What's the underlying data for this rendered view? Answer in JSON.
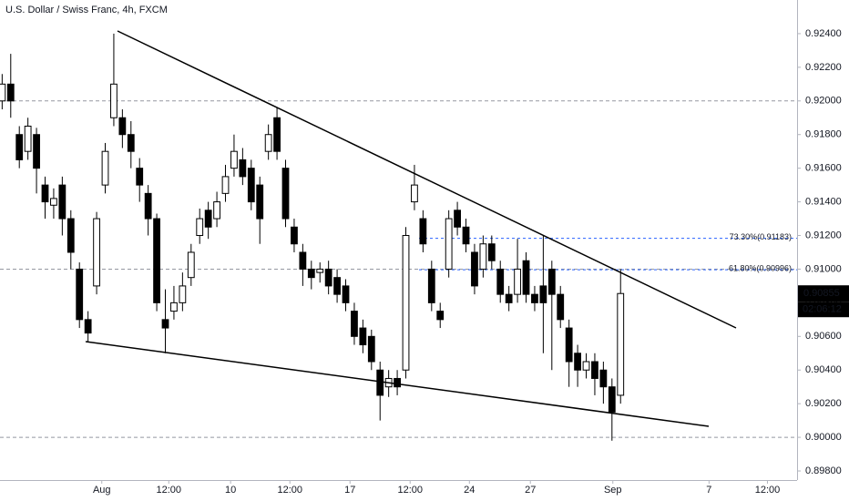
{
  "chart_data": {
    "type": "candlestick",
    "title": "U.S. Dollar / Swiss Franc, 4h, FXCM",
    "open": [
      0.92,
      0.921,
      0.918,
      0.917,
      0.918,
      0.915,
      0.9138,
      0.915,
      0.913,
      0.91,
      0.907,
      0.909,
      0.915,
      0.919,
      0.919,
      0.918,
      0.916,
      0.9145,
      0.913,
      0.907,
      0.9075,
      0.908,
      0.9095,
      0.912,
      0.9135,
      0.913,
      0.9145,
      0.916,
      0.9165,
      0.916,
      0.915,
      0.917,
      0.919,
      0.916,
      0.9125,
      0.911,
      0.91,
      0.9098,
      0.91,
      0.9095,
      0.909,
      0.9075,
      0.9065,
      0.906,
      0.904,
      0.903,
      0.9035,
      0.904,
      0.914,
      0.913,
      0.91,
      0.9075,
      0.91,
      0.9135,
      0.9125,
      0.911,
      0.91,
      0.9115,
      0.91,
      0.9085,
      0.9085,
      0.9105,
      0.9085,
      0.909,
      0.91,
      0.9085,
      0.9065,
      0.905,
      0.904,
      0.9045,
      0.904,
      0.903,
      0.9025
    ],
    "high": [
      0.9216,
      0.9228,
      0.9185,
      0.919,
      0.9184,
      0.9155,
      0.9148,
      0.9155,
      0.9135,
      0.9104,
      0.9075,
      0.9134,
      0.9175,
      0.924,
      0.9195,
      0.9188,
      0.9166,
      0.915,
      0.9133,
      0.9088,
      0.909,
      0.9098,
      0.9115,
      0.9136,
      0.914,
      0.9146,
      0.9162,
      0.918,
      0.9172,
      0.9165,
      0.9155,
      0.9186,
      0.9196,
      0.9165,
      0.913,
      0.9115,
      0.9105,
      0.9104,
      0.9105,
      0.91,
      0.9094,
      0.908,
      0.907,
      0.9064,
      0.9045,
      0.904,
      0.904,
      0.9125,
      0.9162,
      0.9135,
      0.9105,
      0.908,
      0.9135,
      0.914,
      0.913,
      0.9115,
      0.912,
      0.912,
      0.9105,
      0.909,
      0.9118,
      0.911,
      0.909,
      0.912,
      0.9105,
      0.909,
      0.907,
      0.9055,
      0.905,
      0.905,
      0.9045,
      0.9035,
      0.91
    ],
    "low": [
      0.9195,
      0.919,
      0.916,
      0.9165,
      0.9145,
      0.913,
      0.913,
      0.912,
      0.91,
      0.9065,
      0.9057,
      0.9085,
      0.9145,
      0.9185,
      0.9172,
      0.916,
      0.914,
      0.912,
      0.9075,
      0.905,
      0.907,
      0.9075,
      0.909,
      0.9115,
      0.9118,
      0.9125,
      0.914,
      0.9155,
      0.915,
      0.9135,
      0.9115,
      0.9165,
      0.9165,
      0.9125,
      0.911,
      0.909,
      0.9088,
      0.9092,
      0.9085,
      0.908,
      0.9075,
      0.9055,
      0.905,
      0.904,
      0.901,
      0.9024,
      0.9025,
      0.9035,
      0.9135,
      0.911,
      0.9075,
      0.9065,
      0.9095,
      0.912,
      0.911,
      0.9085,
      0.9095,
      0.91,
      0.908,
      0.9075,
      0.908,
      0.908,
      0.9075,
      0.905,
      0.904,
      0.9065,
      0.903,
      0.903,
      0.9035,
      0.9025,
      0.902,
      0.8998,
      0.902
    ],
    "close": [
      0.921,
      0.92,
      0.9165,
      0.9185,
      0.916,
      0.914,
      0.9142,
      0.913,
      0.911,
      0.907,
      0.9062,
      0.913,
      0.917,
      0.921,
      0.918,
      0.917,
      0.915,
      0.913,
      0.908,
      0.9065,
      0.908,
      0.909,
      0.911,
      0.913,
      0.9125,
      0.914,
      0.9155,
      0.917,
      0.9155,
      0.914,
      0.913,
      0.918,
      0.917,
      0.913,
      0.9115,
      0.91,
      0.9095,
      0.91,
      0.909,
      0.9085,
      0.908,
      0.906,
      0.9055,
      0.9045,
      0.9025,
      0.9035,
      0.903,
      0.912,
      0.915,
      0.9115,
      0.908,
      0.907,
      0.913,
      0.9125,
      0.9115,
      0.909,
      0.9115,
      0.9105,
      0.9085,
      0.908,
      0.91,
      0.9085,
      0.908,
      0.908,
      0.9085,
      0.907,
      0.9045,
      0.904,
      0.9045,
      0.9035,
      0.903,
      0.9015,
      0.90855
    ],
    "colors": {
      "up": "#ffffff",
      "down": "#000000",
      "level": "#2962ff",
      "hline": "#9598a1"
    },
    "xlim": [
      -0.25,
      92.55
    ],
    "xticks": [
      {
        "value": 11.6,
        "label": "Aug"
      },
      {
        "value": 19.4,
        "label": "12:00"
      },
      {
        "value": 26.6,
        "label": "10"
      },
      {
        "value": 33.5,
        "label": "12:00"
      },
      {
        "value": 40.5,
        "label": "17"
      },
      {
        "value": 47.5,
        "label": "12:00"
      },
      {
        "value": 54.4,
        "label": "24"
      },
      {
        "value": 61.5,
        "label": "27"
      },
      {
        "value": 71.1,
        "label": "Sep"
      },
      {
        "value": 82.3,
        "label": "7"
      },
      {
        "value": 89.1,
        "label": "12:00"
      }
    ],
    "ylim": [
      0.89746,
      0.926
    ],
    "yticks": [
      {
        "value": 0.898,
        "label": "0.89800"
      },
      {
        "value": 0.9,
        "label": "0.90000"
      },
      {
        "value": 0.902,
        "label": "0.90200"
      },
      {
        "value": 0.904,
        "label": "0.90400"
      },
      {
        "value": 0.906,
        "label": "0.90600"
      },
      {
        "value": 0.908,
        "label": "0.90800"
      },
      {
        "value": 0.91,
        "label": "0.91000"
      },
      {
        "value": 0.912,
        "label": "0.91200"
      },
      {
        "value": 0.914,
        "label": "0.91400"
      },
      {
        "value": 0.916,
        "label": "0.91600"
      },
      {
        "value": 0.918,
        "label": "0.91800"
      },
      {
        "value": 0.92,
        "label": "0.92000"
      },
      {
        "value": 0.922,
        "label": "0.92200"
      },
      {
        "value": 0.924,
        "label": "0.92400"
      }
    ],
    "hlines": [
      0.92,
      0.91,
      0.9
    ],
    "levels": [
      {
        "label": "73.30%(0.91183)",
        "value": 0.91183
      },
      {
        "label": "61.80%(0.90996)",
        "value": 0.90996
      }
    ],
    "countdown": "02:06:12"
  }
}
